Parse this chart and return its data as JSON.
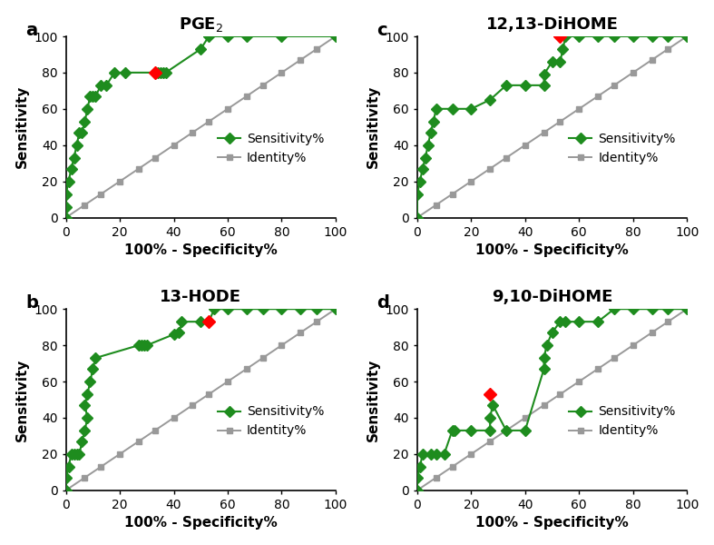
{
  "panels": [
    {
      "label": "a",
      "title_raw": "PGE2",
      "green_x": [
        0,
        0,
        0,
        1,
        2,
        3,
        4,
        5,
        6,
        7,
        8,
        9,
        10,
        11,
        13,
        15,
        18,
        22,
        33,
        34,
        35,
        36,
        37,
        50,
        53,
        60,
        67,
        80,
        100
      ],
      "green_y": [
        0,
        6,
        13,
        20,
        27,
        33,
        40,
        47,
        47,
        53,
        60,
        67,
        67,
        67,
        73,
        73,
        80,
        80,
        80,
        80,
        80,
        80,
        80,
        93,
        100,
        100,
        100,
        100,
        100
      ],
      "red_x": [
        33
      ],
      "red_y": [
        80
      ],
      "identity_x": [
        0,
        7,
        13,
        20,
        27,
        33,
        40,
        47,
        53,
        60,
        67,
        73,
        80,
        87,
        93,
        100
      ],
      "identity_y": [
        0,
        7,
        13,
        20,
        27,
        33,
        40,
        47,
        53,
        60,
        67,
        73,
        80,
        87,
        93,
        100
      ],
      "legend_loc": "center right"
    },
    {
      "label": "b",
      "title_raw": "13-HODE",
      "green_x": [
        0,
        0,
        1,
        2,
        3,
        4,
        5,
        6,
        7,
        8,
        7,
        8,
        9,
        10,
        11,
        27,
        28,
        29,
        30,
        40,
        42,
        43,
        50,
        53,
        55,
        60,
        67,
        73,
        80,
        87,
        93,
        100
      ],
      "green_y": [
        0,
        7,
        13,
        20,
        20,
        20,
        20,
        27,
        33,
        40,
        47,
        53,
        60,
        67,
        73,
        80,
        80,
        80,
        80,
        86,
        87,
        93,
        93,
        93,
        100,
        100,
        100,
        100,
        100,
        100,
        100,
        100
      ],
      "red_x": [
        53
      ],
      "red_y": [
        93
      ],
      "identity_x": [
        0,
        7,
        13,
        20,
        27,
        33,
        40,
        47,
        53,
        60,
        67,
        73,
        80,
        87,
        93,
        100
      ],
      "identity_y": [
        0,
        7,
        13,
        20,
        27,
        33,
        40,
        47,
        53,
        60,
        67,
        73,
        80,
        87,
        93,
        100
      ],
      "legend_loc": "center right"
    },
    {
      "label": "c",
      "title_raw": "12,13-DiHOME",
      "green_x": [
        0,
        0,
        1,
        2,
        3,
        4,
        5,
        6,
        7,
        13,
        20,
        27,
        33,
        40,
        47,
        47,
        50,
        53,
        54,
        55,
        60,
        67,
        73,
        80,
        87,
        93,
        100
      ],
      "green_y": [
        0,
        13,
        20,
        27,
        33,
        40,
        47,
        53,
        60,
        60,
        60,
        65,
        73,
        73,
        73,
        79,
        86,
        86,
        93,
        100,
        100,
        100,
        100,
        100,
        100,
        100,
        100
      ],
      "red_x": [
        53
      ],
      "red_y": [
        100
      ],
      "identity_x": [
        0,
        7,
        13,
        20,
        27,
        33,
        40,
        47,
        53,
        60,
        67,
        73,
        80,
        87,
        93,
        100
      ],
      "identity_y": [
        0,
        7,
        13,
        20,
        27,
        33,
        40,
        47,
        53,
        60,
        67,
        73,
        80,
        87,
        93,
        100
      ],
      "legend_loc": "center right"
    },
    {
      "label": "d",
      "title_raw": "9,10-DiHOME",
      "green_x": [
        0,
        0,
        1,
        2,
        5,
        7,
        10,
        13,
        14,
        20,
        27,
        27,
        28,
        33,
        40,
        47,
        47,
        48,
        50,
        53,
        55,
        60,
        67,
        73,
        80,
        87,
        93,
        100
      ],
      "green_y": [
        0,
        7,
        13,
        20,
        20,
        20,
        20,
        33,
        33,
        33,
        33,
        40,
        47,
        33,
        33,
        67,
        73,
        80,
        87,
        93,
        93,
        93,
        93,
        100,
        100,
        100,
        100,
        100
      ],
      "red_x": [
        27
      ],
      "red_y": [
        53
      ],
      "identity_x": [
        0,
        7,
        13,
        20,
        27,
        33,
        40,
        47,
        53,
        60,
        67,
        73,
        80,
        87,
        93,
        100
      ],
      "identity_y": [
        0,
        7,
        13,
        20,
        27,
        33,
        40,
        47,
        53,
        60,
        67,
        73,
        80,
        87,
        93,
        100
      ],
      "legend_loc": "center right"
    }
  ],
  "green_color": "#1e8c1e",
  "red_color": "#ff0000",
  "gray_color": "#999999",
  "xlabel": "100% - Specificity%",
  "ylabel": "Sensitivity",
  "xlim": [
    0,
    100
  ],
  "ylim": [
    0,
    100
  ],
  "xticks": [
    0,
    20,
    40,
    60,
    80,
    100
  ],
  "yticks": [
    0,
    20,
    40,
    60,
    80,
    100
  ],
  "legend_sensitivity": "Sensitivity%",
  "legend_identity": "Identity%",
  "panel_label_fontsize": 14,
  "title_fontsize": 13,
  "tick_fontsize": 10,
  "axis_label_fontsize": 11,
  "legend_fontsize": 10
}
